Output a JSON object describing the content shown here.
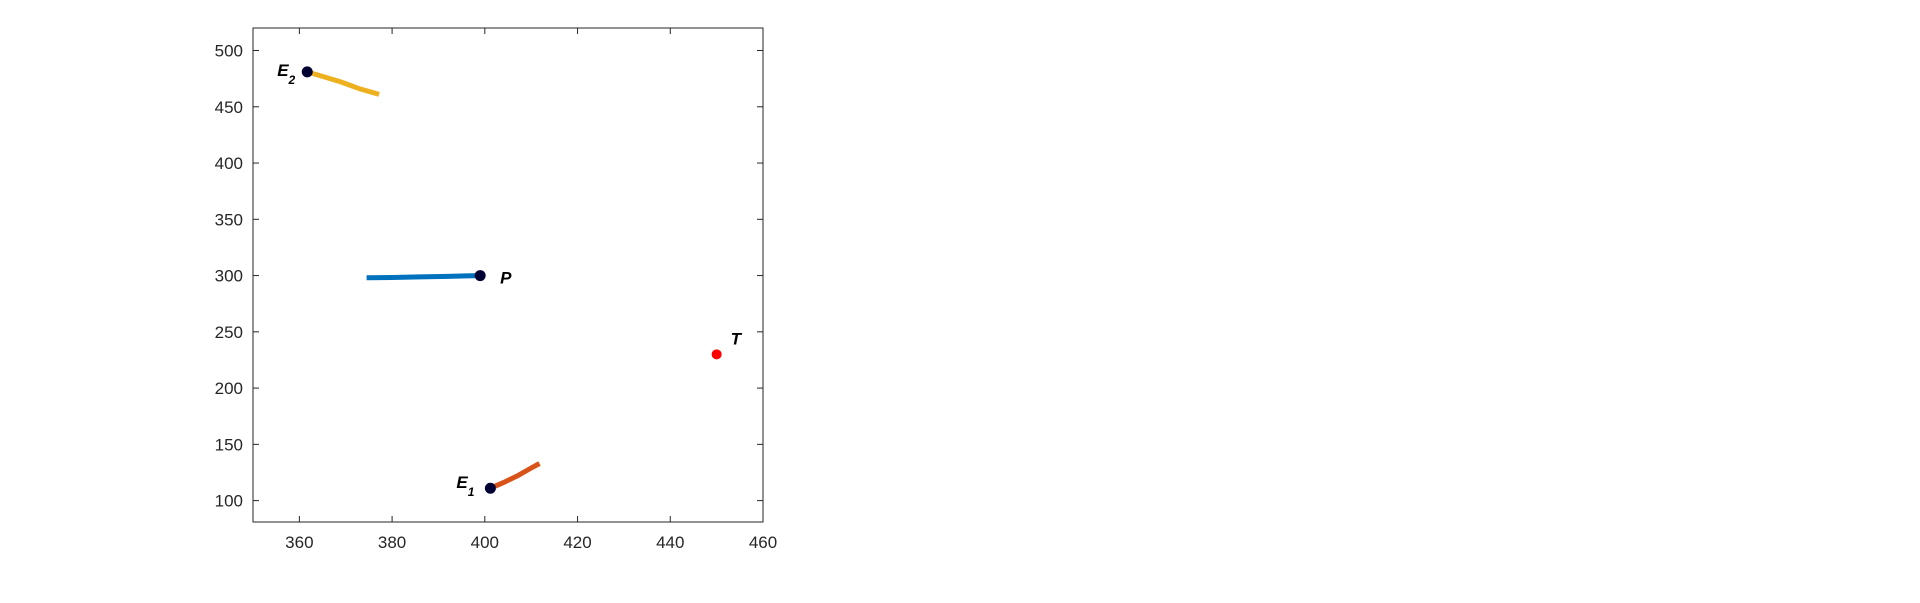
{
  "chart_data": {
    "type": "line",
    "title": "",
    "xlabel": "",
    "ylabel": "",
    "xlim": [
      350,
      460
    ],
    "ylim": [
      81,
      520
    ],
    "xticks": [
      360,
      380,
      400,
      420,
      440,
      460
    ],
    "yticks": [
      100,
      150,
      200,
      250,
      300,
      350,
      400,
      450,
      500
    ],
    "grid": false,
    "legend": "none",
    "series": [
      {
        "label": "P",
        "color": "#0072bd",
        "points": [
          [
            374.5,
            298
          ],
          [
            380,
            298.3
          ],
          [
            386,
            298.8
          ],
          [
            392,
            299.3
          ],
          [
            396,
            299.7
          ],
          [
            399,
            300
          ]
        ],
        "marker": [
          399,
          300
        ]
      },
      {
        "label": "E",
        "subscript": "1",
        "color": "#d95319",
        "points": [
          [
            401.2,
            111
          ],
          [
            404,
            116
          ],
          [
            407,
            122
          ],
          [
            410,
            129
          ],
          [
            411.8,
            133
          ]
        ],
        "marker": [
          401.2,
          111
        ]
      },
      {
        "label": "E",
        "subscript": "2",
        "color": "#edb120",
        "points": [
          [
            361.7,
            481
          ],
          [
            365,
            477
          ],
          [
            369,
            472
          ],
          [
            373,
            466
          ],
          [
            377.2,
            461
          ]
        ],
        "marker": [
          361.7,
          481
        ]
      }
    ],
    "target": {
      "label": "T",
      "color": "#ff0000",
      "point": [
        450,
        230
      ]
    }
  }
}
